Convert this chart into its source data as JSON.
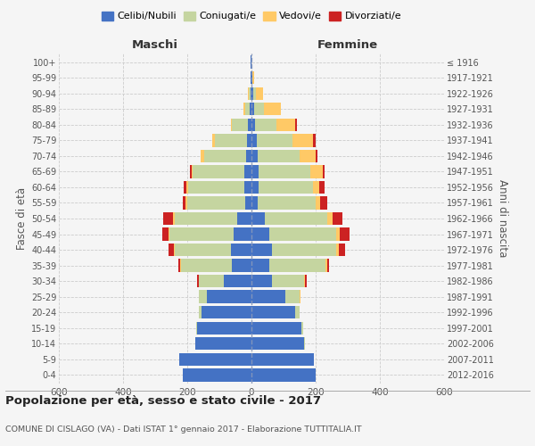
{
  "age_groups": [
    "0-4",
    "5-9",
    "10-14",
    "15-19",
    "20-24",
    "25-29",
    "30-34",
    "35-39",
    "40-44",
    "45-49",
    "50-54",
    "55-59",
    "60-64",
    "65-69",
    "70-74",
    "75-79",
    "80-84",
    "85-89",
    "90-94",
    "95-99",
    "100+"
  ],
  "birth_years": [
    "2012-2016",
    "2007-2011",
    "2002-2006",
    "1997-2001",
    "1992-1996",
    "1987-1991",
    "1982-1986",
    "1977-1981",
    "1972-1976",
    "1967-1971",
    "1962-1966",
    "1957-1961",
    "1952-1956",
    "1947-1951",
    "1942-1946",
    "1937-1941",
    "1932-1936",
    "1927-1931",
    "1922-1926",
    "1917-1921",
    "≤ 1916"
  ],
  "male_celibi": [
    215,
    225,
    175,
    170,
    155,
    140,
    85,
    60,
    65,
    55,
    45,
    20,
    22,
    22,
    18,
    15,
    10,
    5,
    4,
    2,
    2
  ],
  "male_coniugati": [
    0,
    0,
    0,
    2,
    8,
    25,
    80,
    160,
    175,
    200,
    195,
    180,
    175,
    160,
    130,
    100,
    50,
    15,
    4,
    0,
    0
  ],
  "male_vedovi": [
    0,
    0,
    0,
    0,
    0,
    0,
    0,
    1,
    2,
    3,
    5,
    5,
    5,
    5,
    10,
    8,
    5,
    5,
    2,
    0,
    0
  ],
  "male_divorziati": [
    0,
    0,
    0,
    0,
    0,
    0,
    5,
    8,
    15,
    20,
    30,
    8,
    8,
    5,
    0,
    0,
    0,
    0,
    0,
    0,
    0
  ],
  "female_celibi": [
    200,
    195,
    165,
    155,
    135,
    105,
    65,
    55,
    65,
    55,
    42,
    20,
    22,
    22,
    20,
    18,
    12,
    8,
    5,
    3,
    1
  ],
  "female_coniugati": [
    0,
    0,
    2,
    5,
    15,
    45,
    100,
    175,
    200,
    210,
    195,
    180,
    170,
    160,
    130,
    110,
    65,
    30,
    10,
    0,
    0
  ],
  "female_vedovi": [
    0,
    0,
    0,
    0,
    0,
    2,
    3,
    5,
    8,
    10,
    15,
    15,
    20,
    40,
    50,
    65,
    60,
    55,
    20,
    5,
    0
  ],
  "female_divorziati": [
    0,
    0,
    0,
    0,
    0,
    2,
    3,
    8,
    18,
    30,
    30,
    20,
    15,
    5,
    5,
    8,
    5,
    0,
    0,
    0,
    0
  ],
  "color_celibi": "#4472c4",
  "color_coniugati": "#c5d5a0",
  "color_vedovi": "#ffc966",
  "color_divorziati": "#cc2222",
  "title": "Popolazione per età, sesso e stato civile - 2017",
  "subtitle": "COMUNE DI CISLAGO (VA) - Dati ISTAT 1° gennaio 2017 - Elaborazione TUTTITALIA.IT",
  "xlabel_left": "Maschi",
  "xlabel_right": "Femmine",
  "ylabel_left": "Fasce di età",
  "ylabel_right": "Anni di nascita",
  "xlim": 600,
  "bg_color": "#f5f5f5",
  "grid_color": "#cccccc"
}
